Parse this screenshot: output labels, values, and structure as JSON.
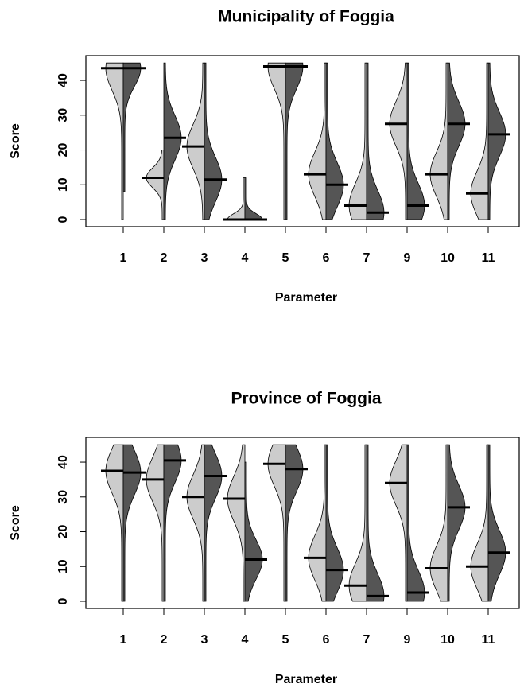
{
  "chart_data": [
    {
      "type": "violin",
      "title": "Municipality of Foggia",
      "xlabel": "Parameter",
      "ylabel": "Score",
      "categories": [
        "1",
        "2",
        "3",
        "4",
        "5",
        "6",
        "7",
        "9",
        "10",
        "11"
      ],
      "series": [
        {
          "color": "#cccccc",
          "values": [
            43.5,
            12,
            21,
            0,
            44,
            13,
            4,
            27.5,
            13,
            7.5
          ],
          "min": [
            0,
            0,
            0,
            0,
            0,
            0,
            0,
            0,
            0,
            0
          ],
          "max": [
            45,
            20,
            45,
            12,
            45,
            45,
            45,
            45,
            45,
            45
          ]
        },
        {
          "color": "#555555",
          "values": [
            43.5,
            23.5,
            11.5,
            0,
            44,
            10,
            2,
            4,
            27.5,
            24.5
          ],
          "min": [
            8,
            0,
            0,
            0,
            0,
            0,
            0,
            0,
            0,
            0
          ],
          "max": [
            45,
            45,
            45,
            12,
            45,
            45,
            45,
            45,
            45,
            45
          ]
        }
      ],
      "ylim": [
        -2.06,
        47.1
      ],
      "yticks": [
        0,
        10,
        20,
        30,
        40
      ]
    },
    {
      "type": "violin",
      "title": "Province of Foggia",
      "xlabel": "Parameter",
      "ylabel": "Score",
      "categories": [
        "1",
        "2",
        "3",
        "4",
        "5",
        "6",
        "7",
        "9",
        "10",
        "11"
      ],
      "series": [
        {
          "color": "#cccccc",
          "values": [
            37.5,
            35,
            30,
            29.5,
            39.5,
            12.5,
            4.5,
            34,
            9.5,
            10
          ],
          "min": [
            0,
            0,
            0,
            0,
            0,
            0,
            0,
            0,
            0,
            0
          ],
          "max": [
            45,
            45,
            45,
            45,
            45,
            45,
            45,
            45,
            45,
            45
          ]
        },
        {
          "color": "#555555",
          "values": [
            37,
            40.5,
            36,
            12,
            38,
            9,
            1.5,
            2.5,
            27,
            14
          ],
          "min": [
            0,
            0,
            0,
            0,
            0,
            0,
            0,
            0,
            0,
            0
          ],
          "max": [
            45,
            45,
            45,
            40,
            45,
            45,
            45,
            45,
            45,
            45
          ]
        }
      ],
      "ylim": [
        -2.06,
        47.1
      ],
      "yticks": [
        0,
        10,
        20,
        30,
        40
      ]
    }
  ]
}
